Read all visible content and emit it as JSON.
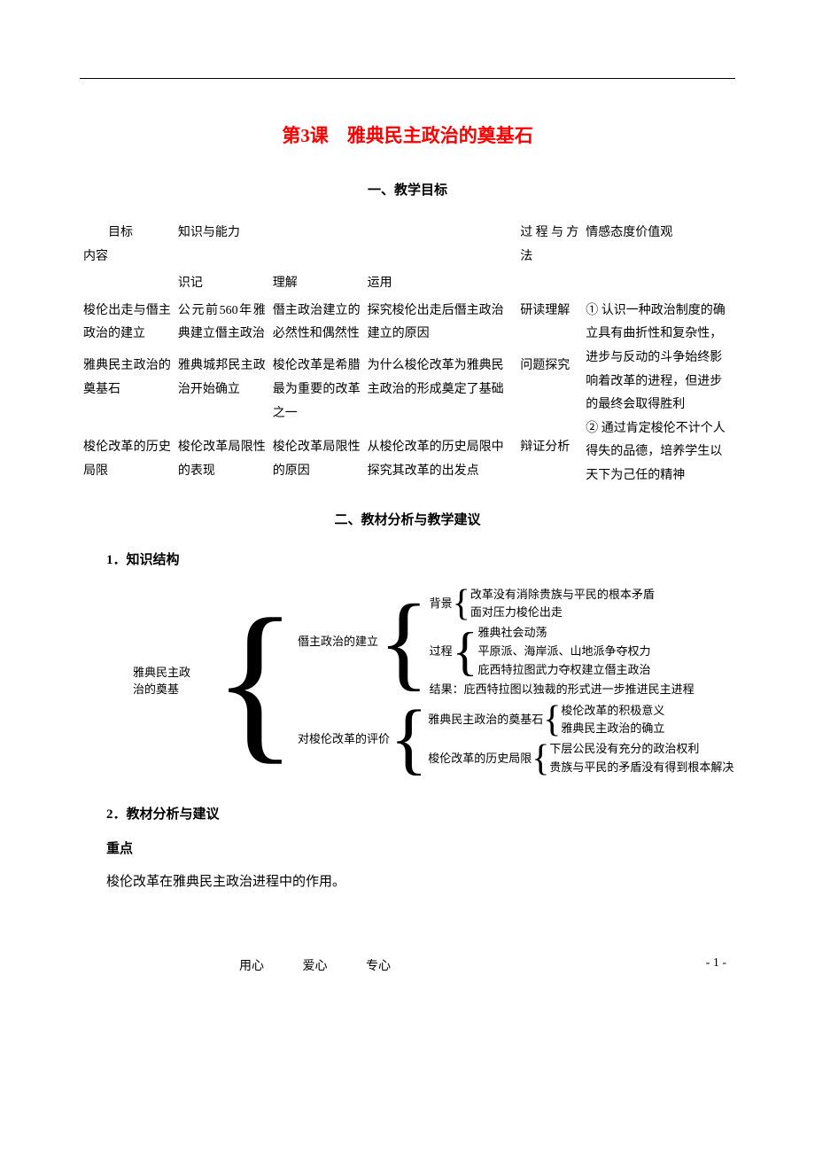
{
  "title": "第3课　雅典民主政治的奠基石",
  "section1_heading": "一、教学目标",
  "section2_heading": "二、教材分析与教学建议",
  "sub1": "1．知识结构",
  "sub2": "2．教材分析与建议",
  "keypoint_label": "重点",
  "keypoint_text": "梭伦改革在雅典民主政治进程中的作用。",
  "objectives": {
    "hdr": {
      "target_content": "目标\n内容",
      "knowledge_ability": "知识与能力",
      "memorize": "识记",
      "understand": "理解",
      "apply": "运用",
      "process_method": "过程与方法",
      "values": "情感态度价值观"
    },
    "rows": [
      {
        "c0": "梭伦出走与僭主政治的建立",
        "c1": "公元前560年雅典建立僭主政治",
        "c2": "僭主政治建立的必然性和偶然性",
        "c3": "探究梭伦出走后僭主政治建立的原因",
        "c4": "研读理解"
      },
      {
        "c0": "雅典民主政治的奠基石",
        "c1": "雅典城邦民主政治开始确立",
        "c2": "梭伦改革是希腊最为重要的改革之一",
        "c3": "为什么梭伦改革为雅典民主政治的形成奠定了基础",
        "c4": "问题探究"
      },
      {
        "c0": "梭伦改革的历史局限",
        "c1": "梭伦改革局限性的表现",
        "c2": "梭伦改革局限性的原因",
        "c3": "从梭伦改革的历史局限中探究其改革的出发点",
        "c4": "辩证分析"
      }
    ],
    "values_text": "① 认识一种政治制度的确立具有曲折性和复杂性，进步与反动的斗争始终影响着改革的进程，但进步的最终会取得胜利\n② 通过肯定梭伦不计个人得失的品德，培养学生以天下为己任的精神"
  },
  "diagram": {
    "root_l1": "雅典民主政",
    "root_l2": "治的奠基",
    "b1_label": "僭主政治的建立",
    "b1_bg_label": "背景",
    "b1_bg_1": "改革没有消除贵族与平民的根本矛盾",
    "b1_bg_2": "面对压力梭伦出走",
    "b1_proc_label": "过程",
    "b1_proc_1": "雅典社会动荡",
    "b1_proc_2": "平原派、海岸派、山地派争夺权力",
    "b1_proc_3": "庇西特拉图武力夺权建立僭主政治",
    "b1_result": "结果：庇西特拉图以独裁的形式进一步推进民主进程",
    "b2_label": "对梭伦改革的评价",
    "b2_s1_label": "雅典民主政治的奠基石",
    "b2_s1_1": "梭伦改革的积极意义",
    "b2_s1_2": "雅典民主政治的确立",
    "b2_s2_label": "梭伦改革的历史局限",
    "b2_s2_1": "下层公民没有充分的政治权利",
    "b2_s2_2": "贵族与平民的矛盾没有得到根本解决"
  },
  "footer": {
    "m1": "用心",
    "m2": "爱心",
    "m3": "专心",
    "pageno": "- 1 -"
  }
}
